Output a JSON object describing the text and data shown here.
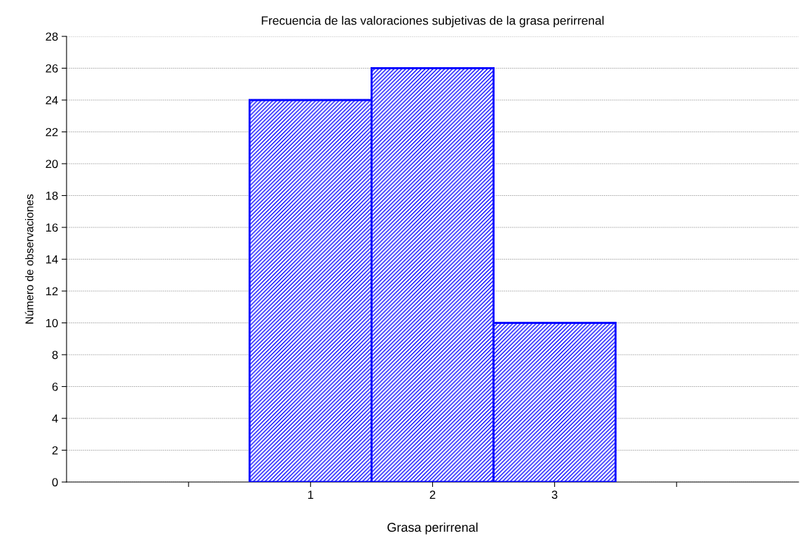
{
  "chart_data": {
    "type": "bar",
    "title": "Frecuencia de las valoraciones subjetivas de la grasa perirrenal",
    "xlabel": "Grasa perirrenal",
    "ylabel": "Número de observaciones",
    "categories": [
      null,
      "1",
      "2",
      "3",
      null
    ],
    "values": [
      null,
      24,
      26,
      10,
      null
    ],
    "color": "#0000ff",
    "ylim": [
      0,
      28
    ],
    "yticks": [
      0,
      2,
      4,
      6,
      8,
      10,
      12,
      14,
      16,
      18,
      20,
      22,
      24,
      26,
      28
    ],
    "grid": "y"
  }
}
